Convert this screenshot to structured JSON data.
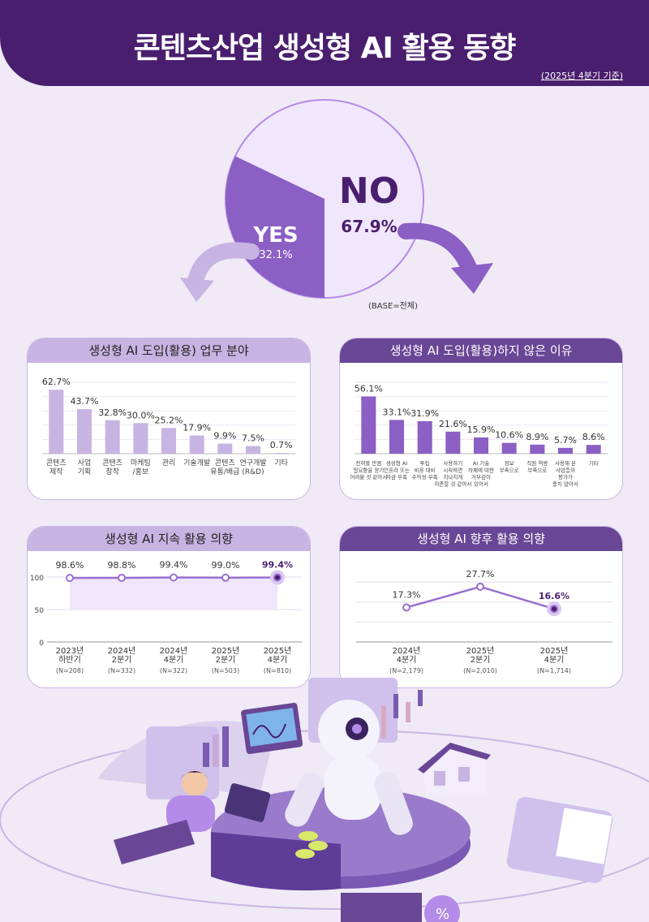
{
  "header": {
    "title": "콘텐츠산업 생성형 AI 활용 동향",
    "subtitle": "(2025년 4분기 기준)"
  },
  "pie": {
    "yes_label": "YES",
    "yes_value": "32.1%",
    "yes_fraction": 0.321,
    "no_label": "NO",
    "no_value": "67.9%",
    "base_note": "(BASE=전체)"
  },
  "colors": {
    "dark": "#4a1e6e",
    "accent": "#8b5fc4",
    "light": "#c8b4e2",
    "pale": "#efe6fb"
  },
  "chart_data": [
    {
      "type": "bar",
      "title": "생성형 AI 도입(활용) 업무 분야",
      "categories": [
        "콘텐츠\n제작",
        "사업\n기획",
        "콘텐츠\n창작",
        "마케팅\n/홍보",
        "관리",
        "기술개발",
        "콘텐츠\n유통/배급",
        "연구개발\n(R&D)",
        "기타"
      ],
      "values": [
        62.7,
        43.7,
        32.8,
        30.0,
        25.2,
        17.9,
        9.9,
        7.5,
        0.7
      ],
      "value_labels": [
        "62.7%",
        "43.7%",
        "32.8%",
        "30.0%",
        "25.2%",
        "17.9%",
        "9.9%",
        "7.5%",
        "0.7%"
      ],
      "ylim": [
        0,
        70
      ]
    },
    {
      "type": "bar",
      "title": "생성형 AI 도입(활용)하지 않은 이유",
      "categories": [
        "전혀할 만큼\n필요함을 알기\n어려울 것 같아서",
        "생성형 AI\n인프라 또는\n자금 부족",
        "투입\n비용 대비\n수익성 부족",
        "사용하기\n시작하면\n지나치게\n의존할 것 같아서",
        "AI 기술\n자체에 대한\n거부감이\n있어서",
        "정보\n부족으로",
        "직원 역량\n부족으로",
        "사용해 본\n사업들의\n평가가\n좋지 않아서",
        "기타"
      ],
      "values": [
        56.1,
        33.1,
        31.9,
        21.6,
        15.9,
        10.6,
        8.9,
        5.7,
        8.6
      ],
      "value_labels": [
        "56.1%",
        "33.1%",
        "31.9%",
        "21.6%",
        "15.9%",
        "10.6%",
        "8.9%",
        "5.7%",
        "8.6%"
      ],
      "ylim": [
        0,
        70
      ]
    },
    {
      "type": "line",
      "title": "생성형 AI 지속 활용 의향",
      "categories": [
        "2023년\n하반기",
        "2024년\n2분기",
        "2024년\n4분기",
        "2025년\n2분기",
        "2025년\n4분기"
      ],
      "ns": [
        "(N=208)",
        "(N=332)",
        "(N=322)",
        "(N=503)",
        "(N=810)"
      ],
      "values": [
        98.6,
        98.8,
        99.4,
        99.0,
        99.4
      ],
      "value_labels": [
        "98.6%",
        "98.8%",
        "99.4%",
        "99.0%",
        "99.4%"
      ],
      "yticks": [
        "100",
        "50",
        "0"
      ],
      "ylim": [
        0,
        100
      ]
    },
    {
      "type": "line",
      "title": "생성형 AI  향후 활용 의향",
      "categories": [
        "2024년\n4분기",
        "2025년\n2분기",
        "2025년\n4분기"
      ],
      "ns": [
        "(N=2,179)",
        "(N=2,010)",
        "(N=1,714)"
      ],
      "values": [
        17.3,
        27.7,
        16.6
      ],
      "value_labels": [
        "17.3%",
        "27.7%",
        "16.6%"
      ],
      "ylim": [
        0,
        40
      ]
    }
  ]
}
